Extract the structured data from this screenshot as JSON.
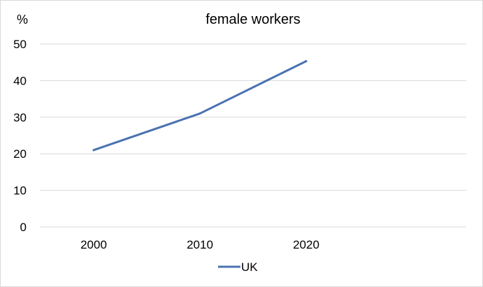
{
  "chart_data": {
    "type": "line",
    "title": "female workers",
    "ylabel": "%",
    "xlabel": "",
    "categories": [
      "2000",
      "2010",
      "2020"
    ],
    "ylim": [
      0,
      50
    ],
    "yticks": [
      0,
      10,
      20,
      30,
      40,
      50
    ],
    "grid": true,
    "legend": "bottom",
    "series": [
      {
        "name": "UK",
        "values": [
          21,
          31,
          45.3
        ],
        "color": "#4a72b0"
      }
    ]
  }
}
